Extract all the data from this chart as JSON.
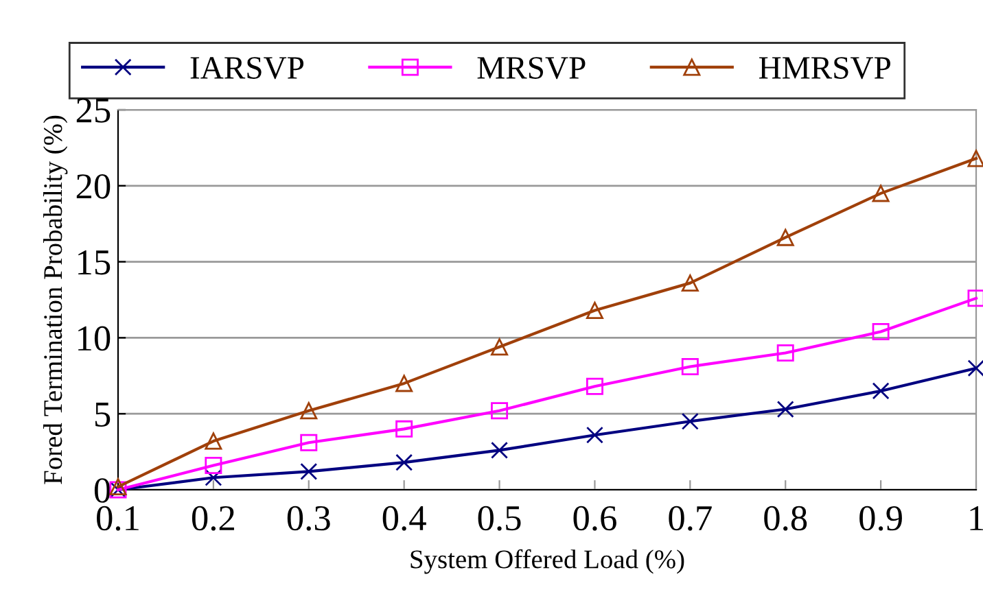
{
  "chart_data": {
    "type": "line",
    "xlabel": "System Offered Load (%)",
    "ylabel": "Fored Termination Probability (%)",
    "x": [
      0.1,
      0.2,
      0.3,
      0.4,
      0.5,
      0.6,
      0.7,
      0.8,
      0.9,
      1
    ],
    "xlim": [
      0.1,
      1
    ],
    "xticks": [
      0.1,
      0.2,
      0.3,
      0.4,
      0.5,
      0.6,
      0.7,
      0.8,
      0.9,
      1
    ],
    "ylim": [
      0,
      25
    ],
    "yticks": [
      0,
      5,
      10,
      15,
      20,
      25
    ],
    "grid": "y",
    "legend": "top",
    "series": [
      {
        "name": "IARSVP",
        "color": "#000080",
        "marker": "cross",
        "values": [
          0,
          0.8,
          1.2,
          1.8,
          2.6,
          3.6,
          4.5,
          5.3,
          6.5,
          8.0
        ]
      },
      {
        "name": "MRSVP",
        "color": "#ff00ff",
        "marker": "square",
        "values": [
          0,
          1.6,
          3.1,
          4.0,
          5.2,
          6.8,
          8.1,
          9.0,
          10.4,
          12.6
        ]
      },
      {
        "name": "HMRSVP",
        "color": "#a0400a",
        "marker": "triangle",
        "values": [
          0.2,
          3.2,
          5.2,
          7.0,
          9.4,
          11.8,
          13.6,
          16.6,
          19.5,
          21.8
        ]
      }
    ]
  }
}
